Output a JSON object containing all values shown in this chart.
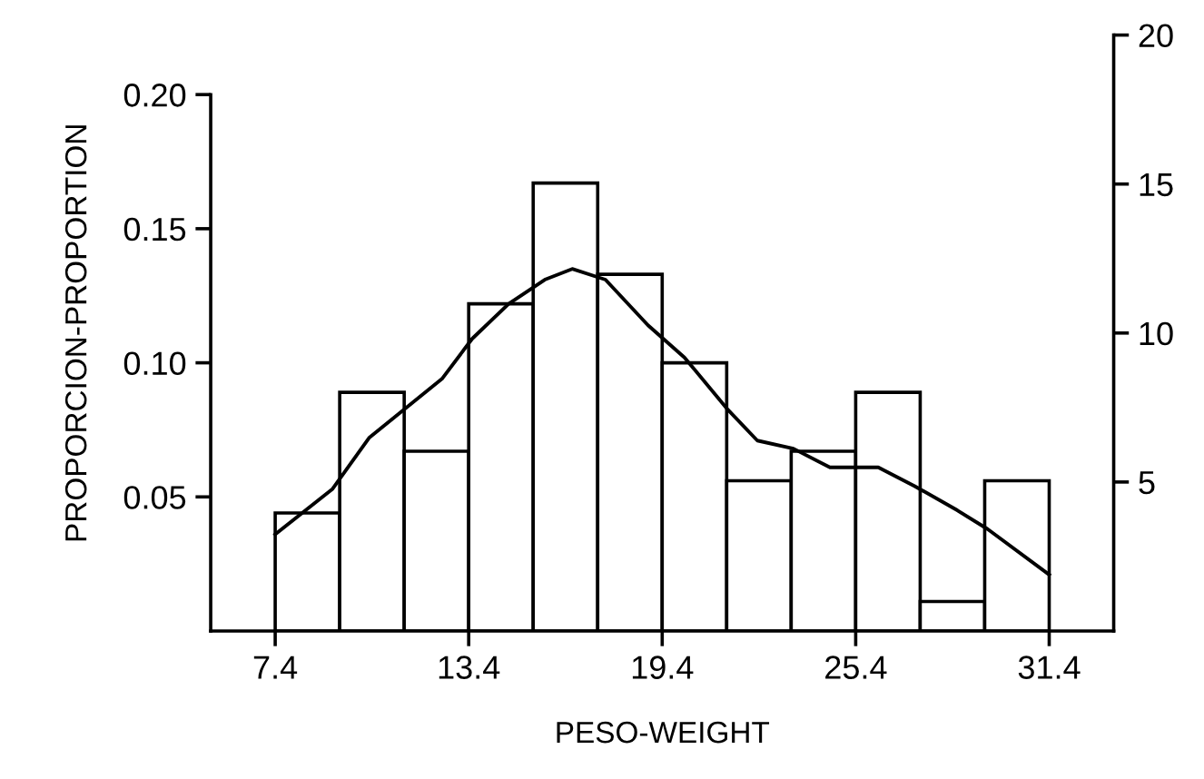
{
  "chart_data": {
    "type": "histogram",
    "xlabel": "PESO-WEIGHT",
    "ylabel": "PROPORCION-PROPORTION",
    "bins": [
      7.4,
      9.4,
      11.4,
      13.4,
      15.4,
      17.4,
      19.4,
      21.4,
      23.4,
      25.4,
      27.4,
      29.4,
      31.4
    ],
    "values": [
      0.044,
      0.089,
      0.067,
      0.122,
      0.167,
      0.133,
      0.1,
      0.056,
      0.067,
      0.089,
      0.011,
      0.056
    ],
    "color": "#ffffff",
    "series": [
      {
        "type": "line",
        "color": "#000000",
        "x": [
          7.4,
          9.18,
          10.31,
          12.57,
          13.51,
          14.64,
          15.76,
          16.61,
          17.64,
          18.96,
          20.09,
          21.4,
          22.35,
          23.47,
          24.6,
          26.1,
          27.23,
          28.55,
          29.49,
          31.4
        ],
        "values": [
          0.036,
          0.053,
          0.072,
          0.094,
          0.109,
          0.122,
          0.131,
          0.135,
          0.131,
          0.114,
          0.102,
          0.083,
          0.071,
          0.068,
          0.061,
          0.061,
          0.054,
          0.045,
          0.038,
          0.021
        ]
      }
    ],
    "xlim": [
      5.4,
      33.4
    ],
    "xticks": [
      7.4,
      13.4,
      19.4,
      25.4,
      31.4
    ],
    "ylim": [
      0,
      0.2222
    ],
    "yticks": [
      0.05,
      {
        "value": 0.1,
        "label": "0.10"
      },
      0.15,
      {
        "value": 0.2,
        "label": "0.20"
      }
    ],
    "y2lim": [
      0,
      20
    ],
    "y2ticks": [
      5,
      10,
      15,
      20
    ],
    "grid": false
  }
}
